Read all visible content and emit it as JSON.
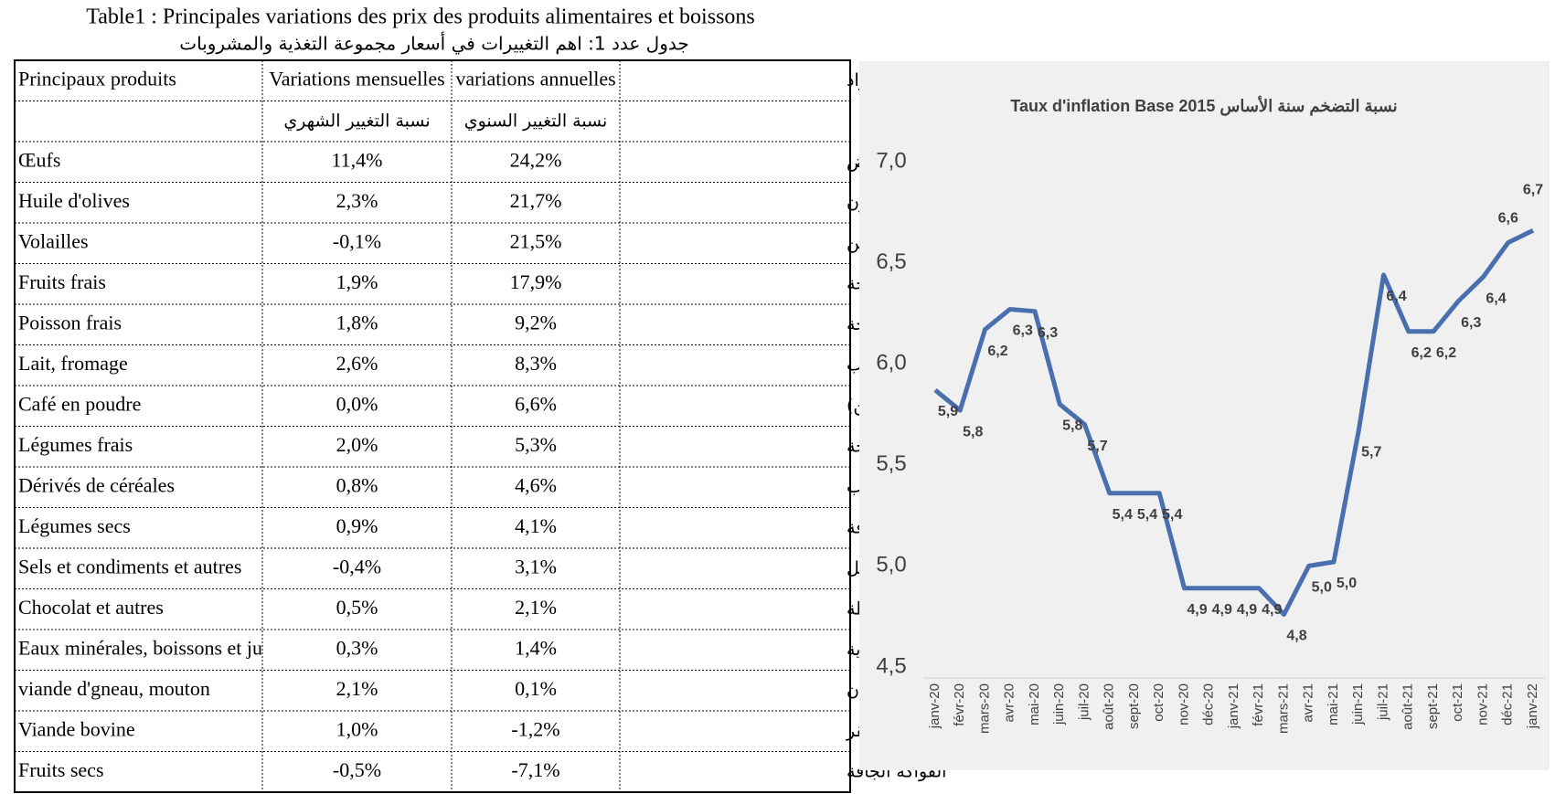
{
  "header": {
    "title": "Table1 : Principales variations des prix des produits alimentaires et boissons",
    "subtitle": "جدول عدد 1: اهم التغييرات في أسعار مجموعة التغذية والمشروبات"
  },
  "table": {
    "columns": [
      "Principaux produits",
      "Variations mensuelles",
      "variations annuelles",
      "أهم المواد"
    ],
    "subheader": {
      "monthly": "نسبة التغيير الشهري",
      "annual": "نسبة التغيير السنوي"
    },
    "rows": [
      [
        "Œufs",
        "11,4%",
        "24,2%",
        "البيض"
      ],
      [
        "Huile d'olives",
        "2,3%",
        "21,7%",
        "زيت الزيتون"
      ],
      [
        "Volailles",
        "-0,1%",
        "21,5%",
        "الدواجن"
      ],
      [
        "Fruits frais",
        "1,9%",
        "17,9%",
        "الغلال الطازجة"
      ],
      [
        "Poisson frais",
        "1,8%",
        "9,2%",
        "الأسماك الطازجة"
      ],
      [
        "Lait, fromage",
        "2,6%",
        "8,3%",
        "الاجبان ومشتقات الحليب"
      ],
      [
        "Café en poudre",
        "0,0%",
        "6,6%",
        "القهوة (بــن)"
      ],
      [
        "Légumes frais",
        "2,0%",
        "5,3%",
        "الخضر الطازجة"
      ],
      [
        "Dérivés de céréales",
        "0,8%",
        "4,6%",
        "مشتقات الحبوب"
      ],
      [
        "Légumes secs",
        "0,9%",
        "4,1%",
        "البقول الجافة"
      ],
      [
        "Sels et condiments et autres",
        "-0,4%",
        "3,1%",
        "التوابل"
      ],
      [
        "Chocolat et autres",
        "0,5%",
        "2,1%",
        "الحلوى والشكولاطة"
      ],
      [
        "Eaux minérales, boissons et jus",
        "0,3%",
        "1,4%",
        "الماء المعدني والمشروبات الغازية"
      ],
      [
        "viande d'gneau, mouton",
        "2,1%",
        "0,1%",
        "لحم الضأن"
      ],
      [
        "Viande bovine",
        "1,0%",
        "-1,2%",
        "لحم البقر"
      ],
      [
        "Fruits secs",
        "-0,5%",
        "-7,1%",
        "الفواكه الجافة"
      ]
    ]
  },
  "chart_data": {
    "type": "line",
    "title": "Taux d'inflation Base  2015 نسبة التضخم سنة الأساس",
    "categories": [
      "janv-20",
      "févr-20",
      "mars-20",
      "avr-20",
      "mai-20",
      "juin-20",
      "juil-20",
      "août-20",
      "sept-20",
      "oct-20",
      "nov-20",
      "déc-20",
      "janv-21",
      "févr-21",
      "mars-21",
      "avr-21",
      "mai-21",
      "juin-21",
      "juil-21",
      "août-21",
      "sept-21",
      "oct-21",
      "nov-21",
      "déc-21",
      "janv-22"
    ],
    "series": [
      {
        "name": "Taux d'inflation",
        "color": "#4a6fae",
        "values": [
          5.87,
          5.77,
          6.17,
          6.27,
          6.26,
          5.8,
          5.7,
          5.36,
          5.36,
          5.36,
          4.89,
          4.89,
          4.89,
          4.89,
          4.76,
          5.0,
          5.02,
          5.67,
          6.44,
          6.16,
          6.16,
          6.31,
          6.43,
          6.6,
          6.66
        ],
        "value_labels": [
          "5,9",
          "5,8",
          "6,2",
          "6,3",
          "6,3",
          "5,8",
          "5,7",
          "5,4",
          "5,4",
          "5,4",
          "4,9",
          "4,9",
          "4,9",
          "4,9",
          "4,8",
          "5,0",
          "5,0",
          "5,7",
          "6,4",
          "6,2",
          "6,2",
          "6,3",
          "6,4",
          "6,6",
          "6,7"
        ]
      }
    ],
    "ylim": [
      4.5,
      7.0
    ],
    "yticks": [
      {
        "value": 4.5,
        "label": "4,5"
      },
      {
        "value": 5.0,
        "label": "5,0"
      },
      {
        "value": 5.5,
        "label": "5,5"
      },
      {
        "value": 6.0,
        "label": "6,0"
      },
      {
        "value": 6.5,
        "label": "6,5"
      },
      {
        "value": 7.0,
        "label": "7,0"
      }
    ]
  }
}
